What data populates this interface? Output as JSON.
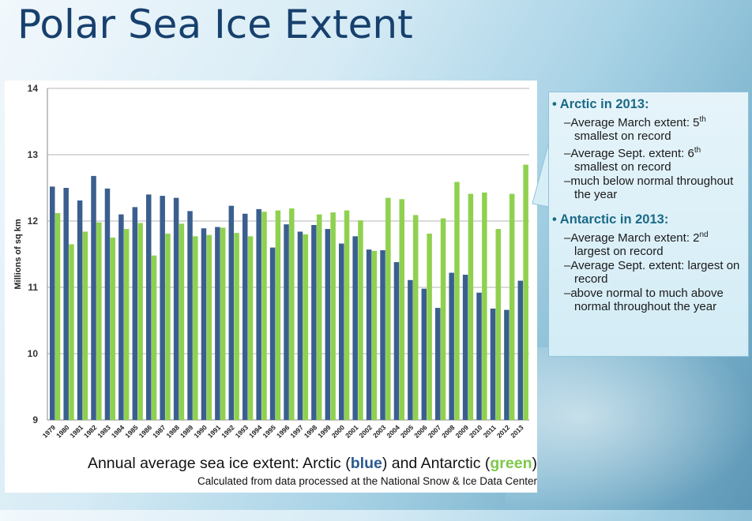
{
  "slide": {
    "title": "Polar Sea Ice Extent"
  },
  "chart_data": {
    "type": "bar",
    "ylabel": "Millions of sq km",
    "ylim": [
      9,
      14
    ],
    "yticks": [
      "9",
      "10",
      "11",
      "12",
      "13",
      "14"
    ],
    "grid": true,
    "categories": [
      "1979",
      "1980",
      "1981",
      "1982",
      "1983",
      "1984",
      "1985",
      "1986",
      "1987",
      "1988",
      "1989",
      "1990",
      "1991",
      "1992",
      "1993",
      "1994",
      "1995",
      "1996",
      "1997",
      "1998",
      "1999",
      "2000",
      "2001",
      "2002",
      "2003",
      "2004",
      "2005",
      "2006",
      "2007",
      "2008",
      "2009",
      "2010",
      "2011",
      "2012",
      "2013"
    ],
    "series": [
      {
        "name": "Arctic",
        "color": "#3a5f8f",
        "values": [
          12.52,
          12.5,
          12.31,
          12.68,
          12.49,
          12.1,
          12.21,
          12.4,
          12.38,
          12.35,
          12.15,
          11.89,
          11.91,
          12.23,
          12.11,
          12.18,
          11.6,
          11.95,
          11.84,
          11.94,
          11.88,
          11.66,
          11.77,
          11.57,
          11.56,
          11.38,
          11.11,
          10.98,
          10.69,
          11.22,
          11.19,
          10.92,
          10.68,
          10.66,
          11.1
        ]
      },
      {
        "name": "Antarctic",
        "color": "#8fd14f",
        "values": [
          12.12,
          11.65,
          11.84,
          11.98,
          11.75,
          11.88,
          11.97,
          11.48,
          11.81,
          11.96,
          11.77,
          11.79,
          11.9,
          11.82,
          11.77,
          12.14,
          12.16,
          12.19,
          11.8,
          12.1,
          12.13,
          12.16,
          12.01,
          11.55,
          12.35,
          12.33,
          12.09,
          11.81,
          12.04,
          12.59,
          12.41,
          12.43,
          11.88,
          12.41,
          12.85
        ]
      }
    ]
  },
  "caption": {
    "pre": "Annual average sea ice extent: Arctic (",
    "blue": "blue",
    "mid": ") and Antarctic (",
    "green": "green",
    "post": ")",
    "source": "Calculated from data processed at the National Snow & Ice Data Center"
  },
  "callout": {
    "arctic_head": "Arctic in 2013:",
    "arctic_items": [
      {
        "text": "Average March extent: 5",
        "sup": "th",
        "rest": " smallest on record"
      },
      {
        "text": "Average Sept. extent: 6",
        "sup": "th",
        "rest": " smallest on record"
      },
      {
        "text": "much below normal throughout the year",
        "sup": "",
        "rest": ""
      }
    ],
    "antarctic_head": "Antarctic in 2013:",
    "antarctic_items": [
      {
        "text": "Average March extent: 2",
        "sup": "nd",
        "rest": " largest on record"
      },
      {
        "text": "Average Sept. extent: largest on record",
        "sup": "",
        "rest": ""
      },
      {
        "text": "above normal to much above normal throughout the year",
        "sup": "",
        "rest": ""
      }
    ]
  }
}
